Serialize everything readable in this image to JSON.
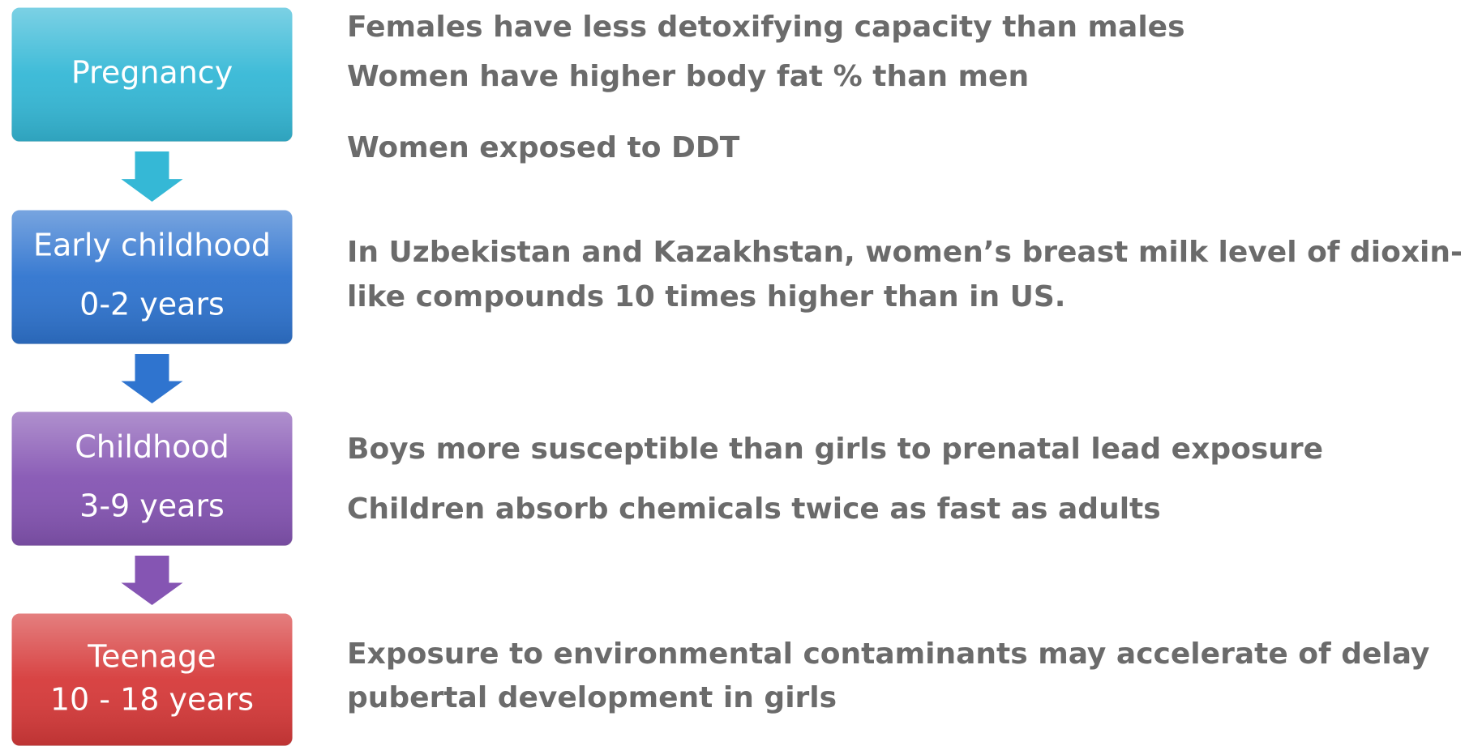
{
  "stages": [
    {
      "label": [
        "Pregnancy"
      ],
      "color": "#35b8d6",
      "facts": [
        "Females have less detoxifying capacity than males",
        "Women have higher body fat % than men",
        "Women exposed to DDT"
      ]
    },
    {
      "label": [
        "Early childhood",
        "0-2 years"
      ],
      "color": "#2f74cf",
      "facts": [
        "In Uzbekistan and Kazakhstan, women’s  breast milk level of dioxin-",
        "like compounds 10 times higher than in US."
      ]
    },
    {
      "label": [
        "Childhood",
        "3-9 years"
      ],
      "color": "#8555b3",
      "facts": [
        "Boys more susceptible than girls to prenatal lead exposure",
        "Children absorb chemicals twice as fast as adults"
      ]
    },
    {
      "label": [
        "Teenage",
        "10 - 18 years"
      ],
      "color": "#d63a3a",
      "facts": [
        "Exposure to environmental contaminants may accelerate of delay",
        "pubertal development in girls"
      ]
    }
  ]
}
